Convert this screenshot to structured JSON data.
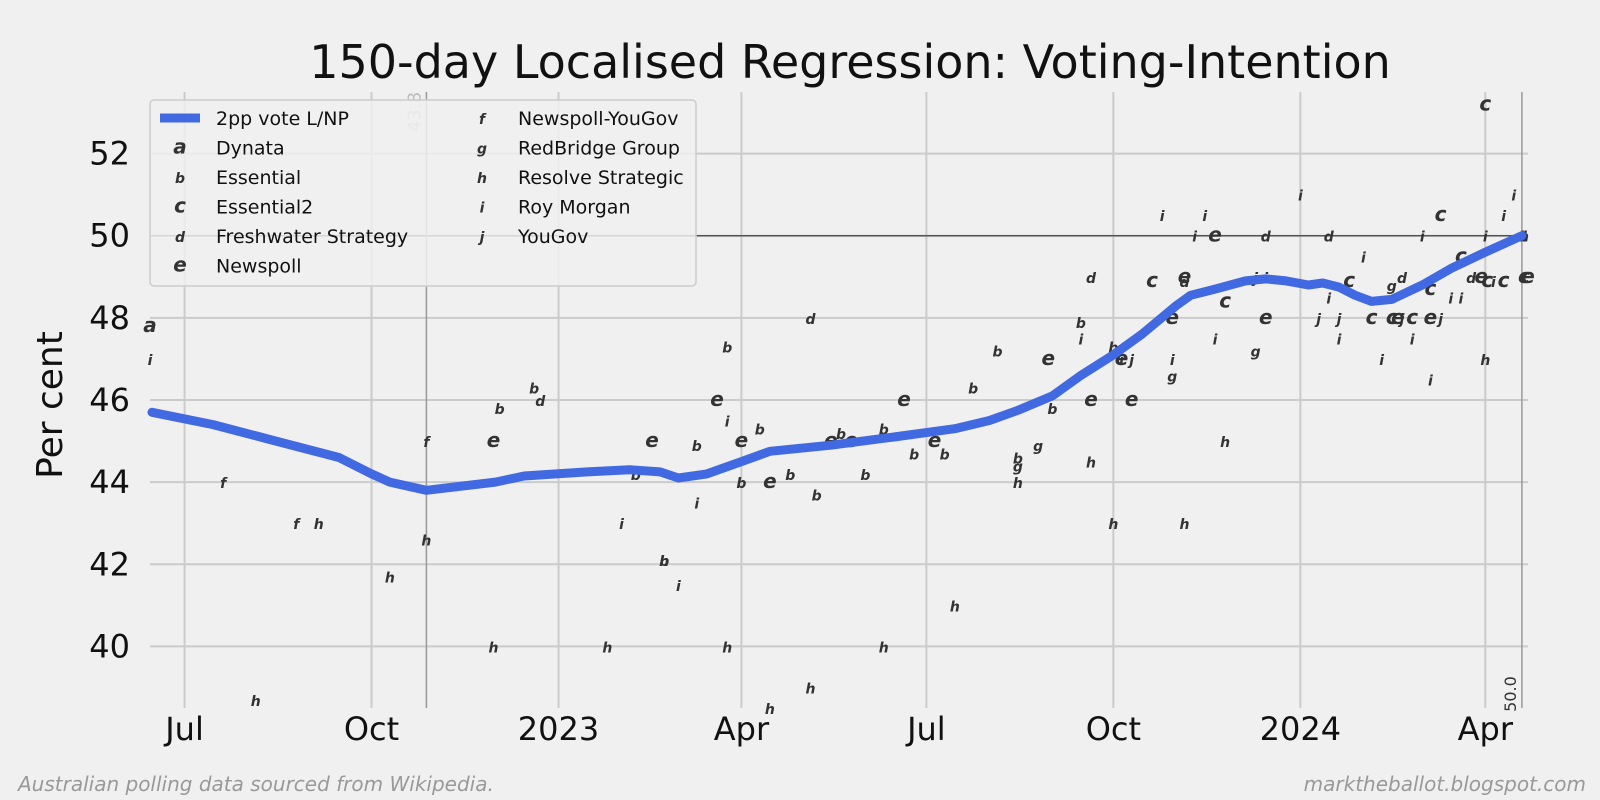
{
  "footer": {
    "source": "Australian polling data sourced from Wikipedia.",
    "site": "marktheballot.blogspot.com"
  },
  "chart_data": {
    "type": "line",
    "title": "150-day Localised Regression: Voting-Intention",
    "ylabel": "Per cent",
    "xlabel": "",
    "ylim": [
      38.5,
      53.5
    ],
    "xlim": [
      "2022-06-14",
      "2024-04-22"
    ],
    "grid": true,
    "legend_position": "top-left",
    "x_ticks": [
      {
        "label": "Jul",
        "date": "2022-07-01"
      },
      {
        "label": "Oct",
        "date": "2022-10-01"
      },
      {
        "label": "2023",
        "date": "2023-01-01"
      },
      {
        "label": "Apr",
        "date": "2023-04-01"
      },
      {
        "label": "Jul",
        "date": "2023-07-01"
      },
      {
        "label": "Oct",
        "date": "2023-10-01"
      },
      {
        "label": "2024",
        "date": "2024-01-01"
      },
      {
        "label": "Apr",
        "date": "2024-04-01"
      }
    ],
    "y_ticks": [
      40,
      42,
      44,
      46,
      48,
      50,
      52
    ],
    "reference_line_y": 50,
    "annotations": [
      {
        "text": "43.8",
        "date": "2022-10-28",
        "y": 43.8,
        "color": "#bbbbbb"
      },
      {
        "text": "50.0",
        "date": "2024-04-19",
        "y": 50.0,
        "color": "#333333"
      }
    ],
    "line_color": "#4169e1",
    "series": [
      {
        "name": "2pp vote L/NP",
        "points": [
          [
            "2022-06-15",
            45.7
          ],
          [
            "2022-07-15",
            45.4
          ],
          [
            "2022-08-15",
            45.0
          ],
          [
            "2022-09-15",
            44.6
          ],
          [
            "2022-10-01",
            44.2
          ],
          [
            "2022-10-10",
            44.0
          ],
          [
            "2022-10-28",
            43.8
          ],
          [
            "2022-12-01",
            44.0
          ],
          [
            "2022-12-15",
            44.15
          ],
          [
            "2023-01-15",
            44.25
          ],
          [
            "2023-02-05",
            44.3
          ],
          [
            "2023-02-20",
            44.25
          ],
          [
            "2023-03-01",
            44.1
          ],
          [
            "2023-03-15",
            44.2
          ],
          [
            "2023-04-01",
            44.5
          ],
          [
            "2023-04-15",
            44.75
          ],
          [
            "2023-05-15",
            44.9
          ],
          [
            "2023-06-15",
            45.1
          ],
          [
            "2023-07-15",
            45.3
          ],
          [
            "2023-08-01",
            45.5
          ],
          [
            "2023-08-15",
            45.75
          ],
          [
            "2023-09-01",
            46.1
          ],
          [
            "2023-09-15",
            46.6
          ],
          [
            "2023-10-01",
            47.1
          ],
          [
            "2023-10-15",
            47.6
          ],
          [
            "2023-11-01",
            48.3
          ],
          [
            "2023-11-08",
            48.55
          ],
          [
            "2023-11-20",
            48.7
          ],
          [
            "2023-12-05",
            48.9
          ],
          [
            "2023-12-15",
            48.95
          ],
          [
            "2023-12-25",
            48.9
          ],
          [
            "2024-01-05",
            48.8
          ],
          [
            "2024-01-12",
            48.85
          ],
          [
            "2024-01-20",
            48.75
          ],
          [
            "2024-01-28",
            48.55
          ],
          [
            "2024-02-05",
            48.4
          ],
          [
            "2024-02-15",
            48.45
          ],
          [
            "2024-03-01",
            48.8
          ],
          [
            "2024-03-15",
            49.2
          ],
          [
            "2024-04-01",
            49.6
          ],
          [
            "2024-04-19",
            50.0
          ]
        ]
      }
    ],
    "poll_series": [
      {
        "code": "a",
        "name": "Dynata",
        "points": [
          [
            "2022-06-14",
            47.8
          ]
        ]
      },
      {
        "code": "b",
        "name": "Essential",
        "points": [
          [
            "2022-12-03",
            45.8
          ],
          [
            "2022-12-20",
            46.3
          ],
          [
            "2023-02-08",
            44.2
          ],
          [
            "2023-02-22",
            42.1
          ],
          [
            "2023-03-10",
            44.9
          ],
          [
            "2023-03-25",
            47.3
          ],
          [
            "2023-04-01",
            44.0
          ],
          [
            "2023-04-10",
            45.3
          ],
          [
            "2023-04-25",
            44.2
          ],
          [
            "2023-05-08",
            43.7
          ],
          [
            "2023-05-20",
            45.2
          ],
          [
            "2023-06-01",
            44.2
          ],
          [
            "2023-06-10",
            45.3
          ],
          [
            "2023-06-25",
            44.7
          ],
          [
            "2023-07-10",
            44.7
          ],
          [
            "2023-07-24",
            46.3
          ],
          [
            "2023-08-05",
            47.2
          ],
          [
            "2023-08-15",
            44.6
          ],
          [
            "2023-09-01",
            45.8
          ],
          [
            "2023-09-15",
            47.9
          ],
          [
            "2023-10-01",
            47.3
          ]
        ]
      },
      {
        "code": "c",
        "name": "Essential2",
        "points": [
          [
            "2023-10-20",
            48.9
          ],
          [
            "2023-11-25",
            48.4
          ],
          [
            "2024-01-25",
            48.9
          ],
          [
            "2024-02-05",
            48.0
          ],
          [
            "2024-02-15",
            48.0
          ],
          [
            "2024-02-25",
            48.0
          ],
          [
            "2024-03-05",
            48.7
          ],
          [
            "2024-03-10",
            50.5
          ],
          [
            "2024-03-20",
            49.5
          ],
          [
            "2024-04-01",
            53.2
          ],
          [
            "2024-04-02",
            48.9
          ],
          [
            "2024-04-10",
            48.9
          ],
          [
            "2024-04-20",
            49.0
          ]
        ]
      },
      {
        "code": "d",
        "name": "Freshwater Strategy",
        "points": [
          [
            "2022-12-23",
            46.0
          ],
          [
            "2023-05-05",
            48.0
          ],
          [
            "2023-09-20",
            49.0
          ],
          [
            "2023-11-05",
            48.9
          ],
          [
            "2023-12-15",
            50.0
          ],
          [
            "2024-01-15",
            50.0
          ],
          [
            "2024-02-20",
            49.0
          ],
          [
            "2024-03-25",
            49.0
          ],
          [
            "2024-04-19",
            50.0
          ]
        ]
      },
      {
        "code": "e",
        "name": "Newspoll",
        "points": [
          [
            "2022-11-30",
            45.0
          ],
          [
            "2023-02-16",
            45.0
          ],
          [
            "2023-03-20",
            46.0
          ],
          [
            "2023-04-01",
            45.0
          ],
          [
            "2023-04-15",
            44.0
          ],
          [
            "2023-05-15",
            45.0
          ],
          [
            "2023-05-25",
            45.0
          ],
          [
            "2023-06-20",
            46.0
          ],
          [
            "2023-07-05",
            45.0
          ],
          [
            "2023-08-30",
            47.0
          ],
          [
            "2023-09-20",
            46.0
          ],
          [
            "2023-10-05",
            47.0
          ],
          [
            "2023-10-10",
            46.0
          ],
          [
            "2023-10-30",
            48.0
          ],
          [
            "2023-11-05",
            49.0
          ],
          [
            "2023-11-20",
            50.0
          ],
          [
            "2023-12-15",
            48.0
          ],
          [
            "2024-02-18",
            48.0
          ],
          [
            "2024-03-05",
            48.0
          ],
          [
            "2024-03-30",
            49.0
          ],
          [
            "2024-04-22",
            49.0
          ]
        ]
      },
      {
        "code": "f",
        "name": "Newspoll-YouGov",
        "points": [
          [
            "2022-07-20",
            44.0
          ],
          [
            "2022-08-25",
            43.0
          ],
          [
            "2022-10-28",
            45.0
          ]
        ]
      },
      {
        "code": "g",
        "name": "RedBridge Group",
        "points": [
          [
            "2023-08-15",
            44.4
          ],
          [
            "2023-08-25",
            44.9
          ],
          [
            "2023-10-30",
            46.6
          ],
          [
            "2023-12-10",
            47.2
          ],
          [
            "2024-02-15",
            48.8
          ]
        ]
      },
      {
        "code": "h",
        "name": "Resolve Strategic",
        "points": [
          [
            "2022-08-05",
            38.7
          ],
          [
            "2022-09-05",
            43.0
          ],
          [
            "2022-10-10",
            41.7
          ],
          [
            "2022-10-28",
            42.6
          ],
          [
            "2022-11-30",
            40.0
          ],
          [
            "2023-01-25",
            40.0
          ],
          [
            "2023-02-22",
            42.1
          ],
          [
            "2023-03-25",
            40.0
          ],
          [
            "2023-04-15",
            38.5
          ],
          [
            "2023-05-05",
            39.0
          ],
          [
            "2023-06-10",
            40.0
          ],
          [
            "2023-07-15",
            41.0
          ],
          [
            "2023-08-15",
            44.0
          ],
          [
            "2023-09-20",
            44.5
          ],
          [
            "2023-10-01",
            43.0
          ],
          [
            "2023-11-05",
            43.0
          ],
          [
            "2023-11-25",
            45.0
          ],
          [
            "2024-04-01",
            47.0
          ],
          [
            "2024-04-20",
            50.0
          ]
        ]
      },
      {
        "code": "i",
        "name": "Roy Morgan",
        "points": [
          [
            "2022-06-14",
            47.0
          ],
          [
            "2023-02-01",
            43.0
          ],
          [
            "2023-03-01",
            41.5
          ],
          [
            "2023-03-10",
            43.5
          ],
          [
            "2023-03-25",
            45.5
          ],
          [
            "2023-09-15",
            47.5
          ],
          [
            "2023-10-05",
            47.0
          ],
          [
            "2023-10-25",
            50.5
          ],
          [
            "2023-10-30",
            47.0
          ],
          [
            "2023-11-10",
            50.0
          ],
          [
            "2023-11-15",
            50.5
          ],
          [
            "2023-11-20",
            47.5
          ],
          [
            "2023-12-10",
            49.0
          ],
          [
            "2023-12-15",
            49.0
          ],
          [
            "2024-01-01",
            51.0
          ],
          [
            "2024-01-15",
            48.5
          ],
          [
            "2024-01-20",
            47.5
          ],
          [
            "2024-02-01",
            49.5
          ],
          [
            "2024-02-10",
            47.0
          ],
          [
            "2024-02-25",
            47.5
          ],
          [
            "2024-03-01",
            50.0
          ],
          [
            "2024-03-05",
            46.5
          ],
          [
            "2024-03-15",
            48.5
          ],
          [
            "2024-03-20",
            48.5
          ],
          [
            "2024-04-01",
            50.0
          ],
          [
            "2024-04-05",
            48.9
          ],
          [
            "2024-04-10",
            50.5
          ],
          [
            "2024-04-15",
            51.0
          ]
        ]
      },
      {
        "code": "j",
        "name": "YouGov",
        "points": [
          [
            "2023-10-10",
            47.0
          ],
          [
            "2023-12-10",
            49.0
          ],
          [
            "2024-01-10",
            48.0
          ],
          [
            "2024-01-20",
            48.0
          ],
          [
            "2024-02-20",
            48.0
          ],
          [
            "2024-03-10",
            48.0
          ]
        ]
      }
    ]
  }
}
